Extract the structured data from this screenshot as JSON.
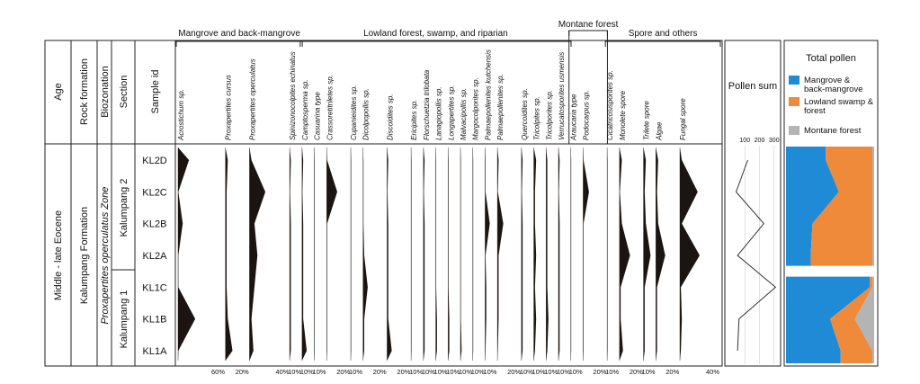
{
  "chart_data": {
    "type": "area",
    "title": "",
    "strat_columns": [
      {
        "header": "Age",
        "value": "Middle - late Eocene"
      },
      {
        "header": "Rock formation",
        "value": "Kalumpang Formation"
      },
      {
        "header": "Biozonation",
        "value": "Proxapertites operculatus Zone"
      },
      {
        "header": "Section",
        "values": [
          "Kalumpang 2",
          "Kalumpang 1"
        ]
      },
      {
        "header": "Sample id"
      }
    ],
    "samples": [
      "KL2D",
      "KL2C",
      "KL2B",
      "KL2A",
      "KL1C",
      "KL1B",
      "KL1A"
    ],
    "groups": [
      {
        "name": "Mangrove and back-mangrove"
      },
      {
        "name": "Lowland forest, swamp, and riparian"
      },
      {
        "name": "Montane forest"
      },
      {
        "name": "Spore and others"
      }
    ],
    "taxa": [
      {
        "name": "Acrostichum sp.",
        "group": 0,
        "values": [
          14,
          0,
          6,
          0,
          0,
          22,
          0
        ],
        "axis_label": "60%"
      },
      {
        "name": "Proxapertites cursus",
        "group": 0,
        "values": [
          2,
          1,
          1,
          1,
          1,
          2,
          6
        ],
        "axis_label": "20%"
      },
      {
        "name": "Proxapertites operculatus",
        "group": 0,
        "values": [
          2,
          16,
          5,
          8,
          5,
          2,
          4
        ],
        "axis_label": "40%"
      },
      {
        "name": "Spinizonocolpites echinatus",
        "group": 0,
        "values": [
          1,
          0,
          1,
          1,
          1,
          1,
          1
        ],
        "axis_label": "10%"
      },
      {
        "name": "Camptosperma sp.",
        "group": 1,
        "values": [
          1,
          0,
          1,
          1,
          1,
          1,
          4
        ],
        "axis_label": "10%"
      },
      {
        "name": "Casuarina type",
        "group": 1,
        "values": [
          0,
          0,
          0,
          0,
          0,
          0,
          0
        ],
        "axis_label": "10%"
      },
      {
        "name": "Crassoretitriletes sp.",
        "group": 1,
        "values": [
          0,
          9,
          0,
          0,
          0,
          0,
          0
        ],
        "axis_label": "20%"
      },
      {
        "name": "Cupanieidites sp.",
        "group": 1,
        "values": [
          0,
          0,
          0,
          0,
          0,
          0,
          0
        ],
        "axis_label": "10%"
      },
      {
        "name": "Dicolpopollis sp.",
        "group": 1,
        "values": [
          0,
          0,
          0,
          1,
          4,
          1,
          1
        ],
        "axis_label": "20%"
      },
      {
        "name": "Discoidites sp.",
        "group": 1,
        "values": [
          1,
          0,
          1,
          1,
          1,
          1,
          4
        ],
        "axis_label": "20%"
      },
      {
        "name": "Ericipites sp.",
        "group": 1,
        "values": [
          0,
          0,
          0,
          0,
          0,
          0,
          0
        ],
        "axis_label": "10%"
      },
      {
        "name": "Florschuetzia trilobata",
        "group": 1,
        "values": [
          1,
          0,
          1,
          1,
          1,
          1,
          1
        ],
        "axis_label": "10%"
      },
      {
        "name": "Lanagiopollis sp.",
        "group": 1,
        "values": [
          0,
          0,
          0,
          0,
          0,
          1,
          1
        ],
        "axis_label": "10%"
      },
      {
        "name": "Longapertites sp.",
        "group": 1,
        "values": [
          0,
          0,
          0,
          0,
          0,
          1,
          1
        ],
        "axis_label": "10%"
      },
      {
        "name": "Malvacipollis sp.",
        "group": 1,
        "values": [
          0,
          0,
          0,
          0,
          0,
          0,
          1
        ],
        "axis_label": "10%"
      },
      {
        "name": "Margocolporites sp.",
        "group": 1,
        "values": [
          0,
          0,
          0,
          0,
          0,
          0,
          0
        ],
        "axis_label": "10%"
      },
      {
        "name": "Palmaepollenites kutchensis",
        "group": 1,
        "values": [
          0,
          0,
          4,
          0,
          1,
          1,
          0
        ],
        "axis_label": "10%"
      },
      {
        "name": "Palmaepollenites sp.",
        "group": 1,
        "values": [
          1,
          0,
          5,
          1,
          1,
          1,
          0
        ],
        "axis_label": "20%"
      },
      {
        "name": "Quercoidites sp.",
        "group": 1,
        "values": [
          1,
          0,
          1,
          1,
          1,
          1,
          1
        ],
        "axis_label": "10%"
      },
      {
        "name": "Tricolpites sp.",
        "group": 1,
        "values": [
          2,
          1,
          1,
          2,
          1,
          2,
          1
        ],
        "axis_label": "10%"
      },
      {
        "name": "Tricolporites sp.",
        "group": 1,
        "values": [
          1,
          1,
          1,
          1,
          1,
          2,
          1
        ],
        "axis_label": "10%"
      },
      {
        "name": "Verrucatosporites usmensis",
        "group": 1,
        "values": [
          1,
          0,
          1,
          1,
          1,
          1,
          1
        ],
        "axis_label": "10%"
      },
      {
        "name": "Araucaria type",
        "group": 2,
        "values": [
          0,
          0,
          0,
          0,
          0,
          0,
          0
        ],
        "axis_label": "10%"
      },
      {
        "name": "Podocarpus sp.",
        "group": 2,
        "values": [
          0,
          5,
          0,
          0,
          0,
          0,
          0
        ],
        "axis_label": "20%"
      },
      {
        "name": "Cicatricosisporites sp.",
        "group": 3,
        "values": [
          0,
          0,
          0,
          0,
          0,
          0,
          0
        ],
        "axis_label": "10%"
      },
      {
        "name": "Monolete spore",
        "group": 3,
        "values": [
          2,
          0,
          2,
          9,
          1,
          1,
          3
        ],
        "axis_label": "20%"
      },
      {
        "name": "Trilete spore",
        "group": 3,
        "values": [
          2,
          1,
          2,
          6,
          1,
          1,
          1
        ],
        "axis_label": "10%"
      },
      {
        "name": "Algae",
        "group": 3,
        "values": [
          2,
          1,
          2,
          8,
          1,
          1,
          1
        ],
        "axis_label": "20%"
      },
      {
        "name": "Fungal spore",
        "group": 3,
        "values": [
          2,
          18,
          2,
          20,
          1,
          2,
          1
        ],
        "axis_label": "40%"
      }
    ],
    "pollen_sum": {
      "title": "Pollen sum",
      "ticks": [
        "100",
        "200",
        "300"
      ],
      "xlim": [
        0,
        320
      ],
      "values": [
        120,
        40,
        230,
        50,
        310,
        60,
        50
      ]
    },
    "total_pollen": {
      "title": "Total pollen",
      "legend": [
        {
          "label": "Mangrove & back-mangrove",
          "color": "#1f8ad6"
        },
        {
          "label": "Lowland swamp & forest",
          "color": "#ee8a3a"
        },
        {
          "label": "Montane forest",
          "color": "#b4b4b4"
        }
      ],
      "series": [
        {
          "name": "Mangrove & back-mangrove",
          "values": [
            45,
            60,
            30,
            28,
            95,
            50,
            62
          ]
        },
        {
          "name": "Lowland swamp & forest",
          "values": [
            53,
            38,
            68,
            70,
            3,
            28,
            36
          ]
        },
        {
          "name": "Montane forest",
          "values": [
            2,
            2,
            2,
            2,
            2,
            22,
            2
          ]
        }
      ]
    }
  }
}
